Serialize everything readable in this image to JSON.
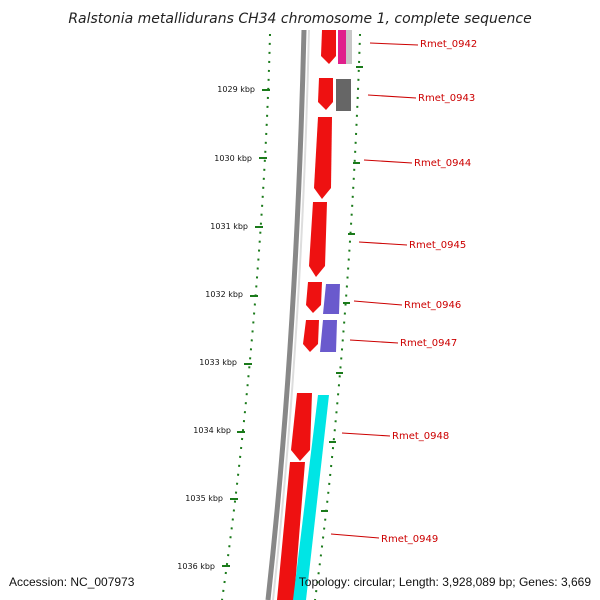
{
  "title": "Ralstonia metallidurans CH34 chromosome 1, complete sequence",
  "accession_text": "Accession: NC_007973",
  "summary_text": "Topology: circular; Length: 3,928,089 bp; Genes: 3,669",
  "axis_ticks": [
    "1029 kbp",
    "1030 kbp",
    "1031 kbp",
    "1032 kbp",
    "1033 kbp",
    "1034 kbp",
    "1035 kbp",
    "1036 kbp"
  ],
  "genes": [
    "Rmet_0942",
    "Rmet_0943",
    "Rmet_0944",
    "Rmet_0945",
    "Rmet_0946",
    "Rmet_0947",
    "Rmet_0948",
    "Rmet_0949"
  ],
  "colors": {
    "gene_red": "#ee1111",
    "label_red": "#cc0000",
    "backbone": "#888888",
    "dots_green": "#1a7a1a",
    "magenta": "#e0208c",
    "gray_feature": "#666666",
    "purple": "#6a5acd",
    "cyan": "#00e5e5"
  }
}
